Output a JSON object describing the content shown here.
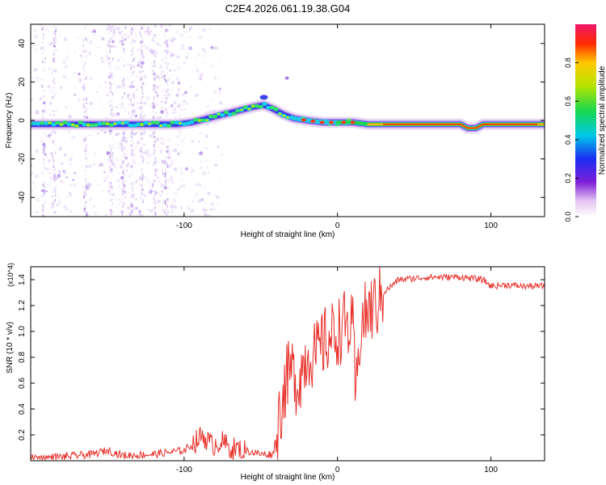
{
  "title": "C2E4.2026.061.19.38.G04",
  "chart_data": [
    {
      "type": "heatmap",
      "xlabel": "Height of straight line (km)",
      "ylabel": "Frequency (Hz)",
      "xlim": [
        -200,
        135
      ],
      "ylim": [
        -50,
        50
      ],
      "xticks": [
        -100,
        0,
        100
      ],
      "xtick_labels": [
        "-100",
        "0",
        "100"
      ],
      "yticks": [
        -40,
        -20,
        0,
        20,
        40
      ],
      "ytick_labels": [
        "-40",
        "-20",
        "0",
        "20",
        "40"
      ],
      "ridge": {
        "x": [
          -200,
          -160,
          -120,
          -105,
          -95,
          -85,
          -75,
          -65,
          -55,
          -48,
          -42,
          -35,
          -28,
          -20,
          -10,
          0,
          10,
          20,
          40,
          60,
          80,
          85,
          90,
          95,
          100,
          120,
          135
        ],
        "freq": [
          -2,
          -2,
          -2,
          -2,
          -1,
          1,
          3,
          5,
          7,
          8,
          6,
          3,
          1,
          0,
          -1,
          -1,
          -1,
          -2,
          -2,
          -2,
          -2,
          -4,
          -4,
          -2,
          -2,
          -2,
          -2
        ]
      },
      "colorbar": {
        "label": "Normalized spectral amplitude",
        "range": [
          0,
          1
        ],
        "ticks": [
          0.0,
          0.2,
          0.4,
          0.6,
          0.8
        ],
        "tick_labels": [
          "0.0",
          "0.2",
          "0.4",
          "0.6",
          "0.8"
        ]
      }
    },
    {
      "type": "line",
      "xlabel": "Height of straight line (km)",
      "ylabel": "SNR (10 * v/v)",
      "y_multiplier": "(x10^4)",
      "xlim": [
        -200,
        135
      ],
      "ylim": [
        0,
        1.5
      ],
      "xticks": [
        -100,
        0,
        100
      ],
      "xtick_labels": [
        "-100",
        "0",
        "100"
      ],
      "yticks": [
        0.2,
        0.4,
        0.6,
        0.8,
        1.0,
        1.2,
        1.4
      ],
      "ytick_labels": [
        "0.2",
        "0.4",
        "0.6",
        "0.8",
        "1.0",
        "1.2",
        "1.4"
      ],
      "series": [
        {
          "name": "SNR",
          "color": "#e8302a",
          "x": [
            -200,
            -180,
            -160,
            -150,
            -140,
            -120,
            -100,
            -92,
            -88,
            -82,
            -76,
            -70,
            -60,
            -50,
            -42,
            -38,
            -34,
            -30,
            -26,
            -22,
            -18,
            -14,
            -10,
            -5,
            0,
            5,
            10,
            12,
            15,
            20,
            25,
            30,
            40,
            60,
            80,
            95,
            100,
            110,
            120,
            135
          ],
          "y": [
            0.02,
            0.03,
            0.05,
            0.08,
            0.04,
            0.05,
            0.08,
            0.15,
            0.2,
            0.12,
            0.15,
            0.1,
            0.08,
            0.05,
            0.05,
            0.35,
            0.6,
            0.7,
            0.6,
            0.75,
            0.85,
            0.8,
            0.9,
            0.95,
            1.0,
            1.05,
            1.0,
            0.45,
            1.05,
            1.15,
            1.2,
            1.3,
            1.4,
            1.42,
            1.42,
            1.4,
            1.35,
            1.36,
            1.35,
            1.35
          ]
        }
      ]
    }
  ]
}
